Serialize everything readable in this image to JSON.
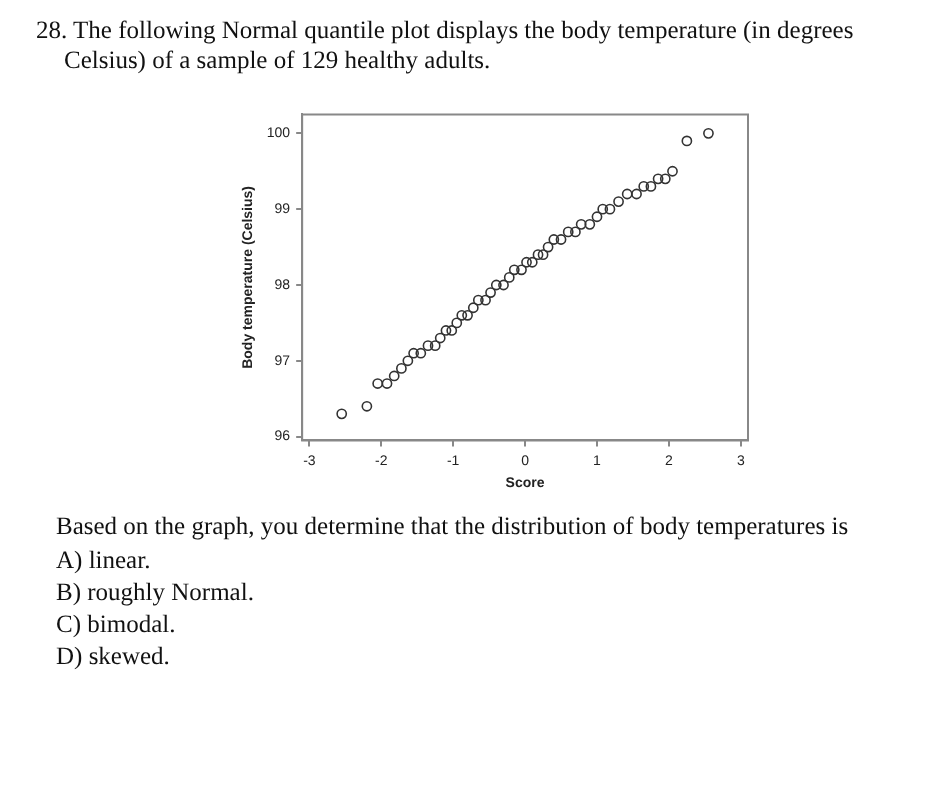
{
  "chart_data": {
    "type": "scatter",
    "title": "28.  The following Normal quantile plot displays the body temperature (in degrees Celsius) of a sample of 129 healthy adults.",
    "xlabel": "Score",
    "ylabel": "Body temperature (Celsius)",
    "annotations": [
      "Based on the graph, you determine that the distribution of body temperatures is",
      "A) linear.",
      "B) roughly Normal.",
      "C) bimodal.",
      "D) skewed."
    ],
    "x": [
      -2.55,
      -2.2,
      -2.05,
      -1.92,
      -1.82,
      -1.72,
      -1.63,
      -1.55,
      -1.45,
      -1.35,
      -1.25,
      -1.18,
      -1.1,
      -1.02,
      -0.95,
      -0.88,
      -0.8,
      -0.72,
      -0.65,
      -0.55,
      -0.48,
      -0.4,
      -0.3,
      -0.22,
      -0.15,
      -0.05,
      0.02,
      0.1,
      0.18,
      0.25,
      0.32,
      0.4,
      0.5,
      0.6,
      0.7,
      0.78,
      0.9,
      1.0,
      1.08,
      1.18,
      1.3,
      1.42,
      1.55,
      1.65,
      1.75,
      1.85,
      1.95,
      2.05,
      2.25,
      2.55
    ],
    "values": [
      96.3,
      96.4,
      96.7,
      96.7,
      96.8,
      96.9,
      97.0,
      97.1,
      97.1,
      97.2,
      97.2,
      97.3,
      97.4,
      97.4,
      97.5,
      97.6,
      97.6,
      97.7,
      97.8,
      97.8,
      97.9,
      98.0,
      98.0,
      98.1,
      98.2,
      98.2,
      98.3,
      98.3,
      98.4,
      98.4,
      98.5,
      98.6,
      98.6,
      98.7,
      98.7,
      98.8,
      98.8,
      98.9,
      99.0,
      99.0,
      99.1,
      99.2,
      99.2,
      99.3,
      99.3,
      99.4,
      99.4,
      99.5,
      99.9,
      100.0
    ],
    "color": "#333333",
    "marker": "circle",
    "grid": false,
    "legend": false,
    "xlim": [
      -3.1,
      3.1
    ],
    "ylim": [
      95.95,
      100.25
    ],
    "xticks": [
      -3,
      -2,
      -1,
      0,
      1,
      2,
      3
    ],
    "yticks": [
      96,
      97,
      98,
      99,
      100
    ]
  }
}
